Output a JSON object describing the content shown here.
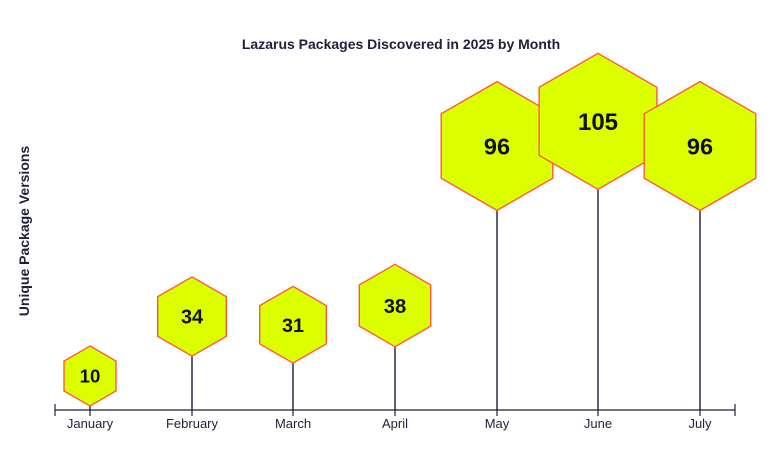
{
  "chart_data": {
    "type": "lollipop",
    "title": "Lazarus Packages Discovered in 2025 by Month",
    "xlabel": "",
    "ylabel": "Unique Package Versions",
    "categories": [
      "January",
      "February",
      "March",
      "April",
      "May",
      "June",
      "July"
    ],
    "values": [
      10,
      34,
      31,
      38,
      96,
      105,
      96
    ],
    "ylim": [
      0,
      120
    ],
    "grid": false,
    "legend": "none"
  },
  "colors": {
    "marker_fill": "#dcff00",
    "marker_stroke": "#ff5a3c",
    "stem": "#1e1f3b",
    "text": "#1e1f3b",
    "value_text": "#111111"
  }
}
